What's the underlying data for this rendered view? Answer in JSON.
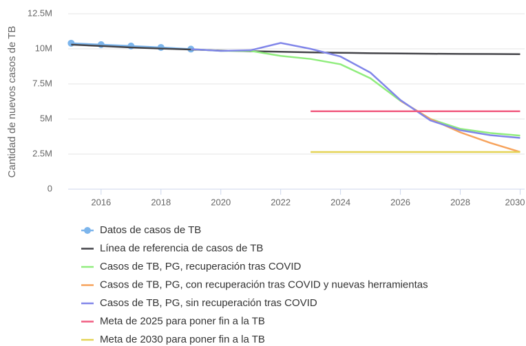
{
  "chart_data": {
    "type": "line",
    "ylabel": "Cantidad de nuevos casos de TB",
    "xlim": [
      2014.9,
      2030.15
    ],
    "xticks": [
      2016,
      2018,
      2020,
      2022,
      2024,
      2026,
      2028,
      2030
    ],
    "ylim": [
      0,
      12500000
    ],
    "yticks": [
      0,
      {
        "value": 2500000,
        "label": "2.5M"
      },
      {
        "value": 5000000,
        "label": "5M"
      },
      {
        "value": 7500000,
        "label": "7.5M"
      },
      {
        "value": 10000000,
        "label": "10M"
      },
      {
        "value": 12500000,
        "label": "12.5M"
      }
    ],
    "grid": true,
    "legend": "bottom",
    "series": [
      {
        "name": "Datos de casos de TB",
        "color": "#7cb5ec",
        "markers": true,
        "x": [
          2015,
          2016,
          2017,
          2018,
          2019
        ],
        "values": [
          10400000,
          10300000,
          10200000,
          10100000,
          9980000
        ]
      },
      {
        "name": "Línea de referencia de casos de TB",
        "color": "#434348",
        "x": [
          2015,
          2016,
          2017,
          2018,
          2019,
          2020,
          2021,
          2022,
          2023,
          2024,
          2025,
          2026,
          2027,
          2028,
          2029,
          2030
        ],
        "values": [
          10300000,
          10200000,
          10100000,
          10020000,
          9950000,
          9880000,
          9830000,
          9790000,
          9750000,
          9720000,
          9690000,
          9670000,
          9650000,
          9640000,
          9630000,
          9620000
        ]
      },
      {
        "name": "Casos de TB, PG, recuperación tras COVID",
        "color": "#90ed7d",
        "x": [
          2019,
          2020,
          2021,
          2022,
          2023,
          2024,
          2025,
          2026,
          2027,
          2028,
          2029,
          2030
        ],
        "values": [
          9980000,
          9850000,
          9850000,
          9500000,
          9280000,
          8900000,
          7900000,
          6300000,
          5000000,
          4300000,
          4000000,
          3820000
        ]
      },
      {
        "name": "Casos de TB, PG, con recuperación tras COVID y nuevas herramientas",
        "color": "#f7a35c",
        "x": [
          2026,
          2027,
          2028,
          2029,
          2030
        ],
        "values": [
          6300000,
          5000000,
          4050000,
          3300000,
          2650000
        ]
      },
      {
        "name": "Casos de TB, PG, sin recuperación tras COVID",
        "color": "#8085e9",
        "x": [
          2019,
          2020,
          2021,
          2022,
          2023,
          2024,
          2025,
          2026,
          2027,
          2028,
          2029,
          2030
        ],
        "values": [
          9980000,
          9850000,
          9900000,
          10420000,
          10000000,
          9450000,
          8300000,
          6350000,
          4900000,
          4200000,
          3850000,
          3650000
        ]
      },
      {
        "name": "Meta de 2025 para poner fin a la TB",
        "color": "#f15c80",
        "x": [
          2023,
          2030
        ],
        "values": [
          5550000,
          5550000
        ]
      },
      {
        "name": "Meta de 2030 para poner fin a la TB",
        "color": "#e4d354",
        "x": [
          2023,
          2030
        ],
        "values": [
          2650000,
          2650000
        ]
      }
    ]
  }
}
